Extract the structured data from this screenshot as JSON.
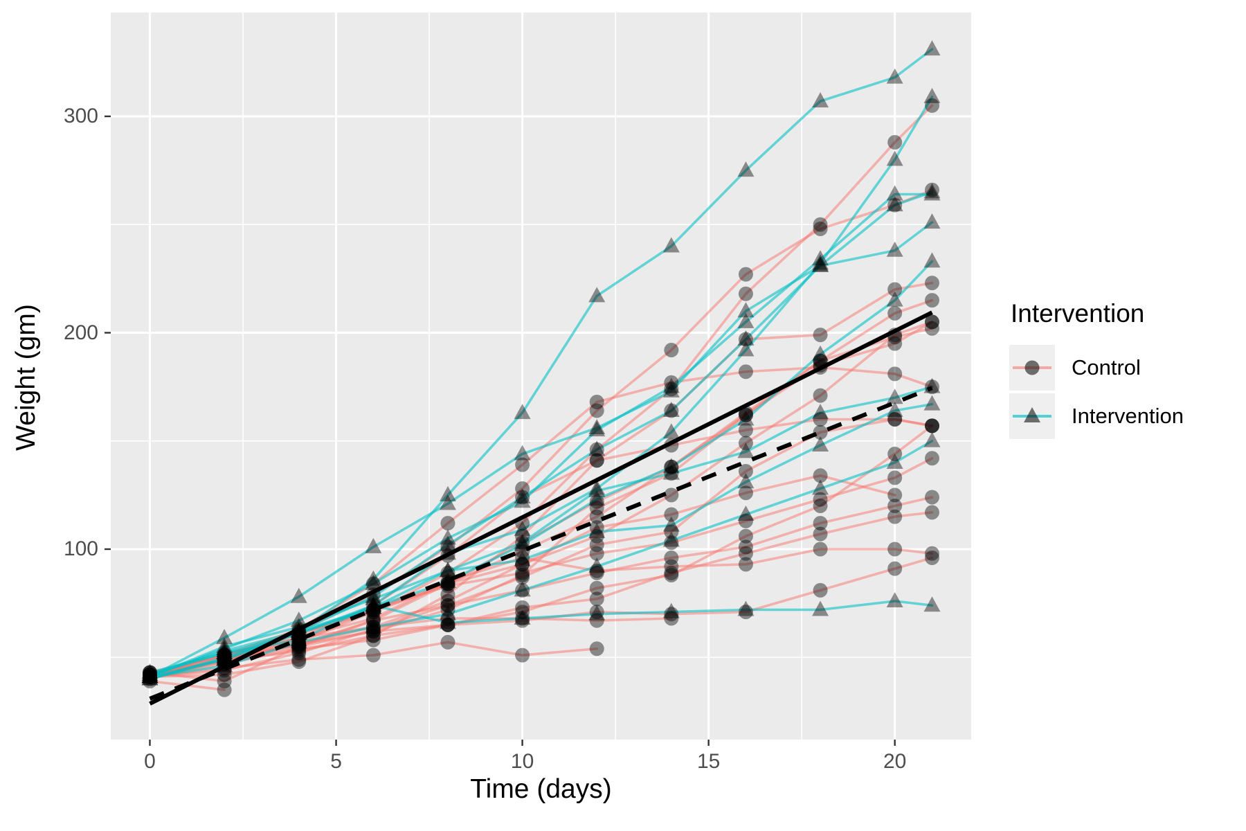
{
  "chart_data": {
    "type": "line",
    "title": "",
    "xlabel": "Time (days)",
    "ylabel": "Weight (gm)",
    "x_ticks": [
      0,
      5,
      10,
      15,
      20
    ],
    "x_minor_gridlines": [
      2.5,
      7.5,
      12.5,
      17.5
    ],
    "y_ticks": [
      100,
      200,
      300
    ],
    "y_minor_gridlines": [
      50,
      150,
      250
    ],
    "xlim": [
      -1.05,
      22.05
    ],
    "ylim": [
      12,
      348
    ],
    "grid": "white major and minor gridlines on grey panel",
    "legend_position": "right",
    "times": [
      0,
      2,
      4,
      6,
      8,
      10,
      12,
      14,
      16,
      18,
      20,
      21
    ],
    "groups": [
      {
        "name": "Control",
        "color": "#F8766D",
        "marker": "circle",
        "line_alpha": 0.5
      },
      {
        "name": "Intervention",
        "color": "#00BFC4",
        "marker": "triangle",
        "line_alpha": 0.58
      }
    ],
    "series": [
      {
        "id": "C01",
        "group": "Control",
        "values": [
          42,
          51,
          59,
          64,
          76,
          93,
          106,
          125,
          149,
          171,
          199,
          205
        ]
      },
      {
        "id": "C02",
        "group": "Control",
        "values": [
          40,
          49,
          58,
          72,
          84,
          103,
          122,
          138,
          162,
          187,
          209,
          215
        ]
      },
      {
        "id": "C03",
        "group": "Control",
        "values": [
          43,
          39,
          55,
          67,
          84,
          99,
          115,
          138,
          163,
          187,
          198,
          202
        ]
      },
      {
        "id": "C04",
        "group": "Control",
        "values": [
          42,
          49,
          56,
          67,
          74,
          87,
          102,
          108,
          136,
          154,
          160,
          157
        ]
      },
      {
        "id": "C05",
        "group": "Control",
        "values": [
          41,
          42,
          48,
          60,
          79,
          106,
          141,
          164,
          197,
          199,
          220,
          223
        ]
      },
      {
        "id": "C06",
        "group": "Control",
        "values": [
          41,
          49,
          59,
          74,
          97,
          124,
          141,
          148,
          155,
          160,
          160,
          157
        ]
      },
      {
        "id": "C07",
        "group": "Control",
        "values": [
          41,
          49,
          57,
          71,
          89,
          112,
          146,
          174,
          218,
          250,
          288,
          305
        ]
      },
      {
        "id": "C08",
        "group": "Control",
        "values": [
          42,
          50,
          61,
          71,
          84,
          93,
          110,
          116,
          126,
          134,
          125
        ]
      },
      {
        "id": "C09",
        "group": "Control",
        "values": [
          42,
          51,
          59,
          68,
          85,
          96,
          90,
          92,
          93,
          100,
          100,
          98
        ]
      },
      {
        "id": "C10",
        "group": "Control",
        "values": [
          41,
          44,
          52,
          63,
          74,
          81,
          89,
          96,
          101,
          112,
          120,
          124
        ]
      },
      {
        "id": "C11",
        "group": "Control",
        "values": [
          43,
          51,
          63,
          84,
          112,
          139,
          168,
          177,
          182,
          184,
          181,
          175
        ]
      },
      {
        "id": "C12",
        "group": "Control",
        "values": [
          41,
          49,
          56,
          62,
          72,
          88,
          119,
          135,
          162,
          185,
          195,
          205
        ]
      },
      {
        "id": "C13",
        "group": "Control",
        "values": [
          41,
          48,
          53,
          60,
          65,
          67,
          71,
          70,
          71,
          81,
          91,
          96
        ]
      },
      {
        "id": "C14",
        "group": "Control",
        "values": [
          41,
          49,
          62,
          79,
          101,
          128,
          164,
          192,
          227,
          248,
          259,
          266
        ]
      },
      {
        "id": "C15",
        "group": "Control",
        "values": [
          41,
          49,
          56,
          64,
          68,
          68,
          67,
          68
        ]
      },
      {
        "id": "C16",
        "group": "Control",
        "values": [
          41,
          45,
          49,
          51,
          57,
          51,
          54
        ]
      },
      {
        "id": "C17",
        "group": "Control",
        "values": [
          42,
          51,
          61,
          72,
          83,
          89,
          98,
          103,
          113,
          123,
          133,
          142
        ]
      },
      {
        "id": "C18",
        "group": "Control",
        "values": [
          39,
          35
        ]
      },
      {
        "id": "C19",
        "group": "Control",
        "values": [
          43,
          48,
          55,
          62,
          65,
          71,
          82,
          88,
          106,
          120,
          144,
          157
        ]
      },
      {
        "id": "C20",
        "group": "Control",
        "values": [
          41,
          47,
          54,
          58,
          65,
          73,
          77,
          89,
          98,
          107,
          115,
          117
        ]
      },
      {
        "id": "I21",
        "group": "Intervention",
        "values": [
          40,
          50,
          62,
          86,
          125,
          163,
          217,
          240,
          275,
          307,
          318,
          331
        ]
      },
      {
        "id": "I22",
        "group": "Intervention",
        "values": [
          41,
          55,
          64,
          77,
          90,
          95,
          108,
          111,
          131,
          148,
          164,
          167
        ]
      },
      {
        "id": "I23",
        "group": "Intervention",
        "values": [
          43,
          52,
          61,
          73,
          90,
          103,
          127,
          135,
          145,
          163,
          170,
          175
        ]
      },
      {
        "id": "I24",
        "group": "Intervention",
        "values": [
          42,
          52,
          58,
          74,
          66,
          68,
          70,
          71,
          72,
          72,
          76,
          74
        ]
      },
      {
        "id": "I25",
        "group": "Intervention",
        "values": [
          40,
          49,
          62,
          78,
          102,
          124,
          146,
          164,
          197,
          231,
          259,
          265
        ]
      },
      {
        "id": "I26",
        "group": "Intervention",
        "values": [
          41,
          59,
          78,
          101,
          121,
          144,
          156,
          173,
          210,
          231,
          238,
          251
        ]
      },
      {
        "id": "I27",
        "group": "Intervention",
        "values": [
          41,
          54,
          67,
          84,
          105,
          122,
          155,
          175,
          205,
          234,
          264,
          264
        ]
      },
      {
        "id": "I28",
        "group": "Intervention",
        "values": [
          41,
          49,
          61,
          74,
          98,
          109,
          128,
          154,
          192,
          232,
          280,
          309
        ]
      },
      {
        "id": "I29",
        "group": "Intervention",
        "values": [
          42,
          53,
          62,
          73,
          85,
          102,
          123,
          138,
          160,
          190,
          215,
          233
        ]
      },
      {
        "id": "I30",
        "group": "Intervention",
        "values": [
          41,
          46,
          57,
          64,
          70,
          81,
          92,
          104,
          116,
          128,
          140,
          150
        ]
      }
    ],
    "trend_lines": [
      {
        "group": "Intervention",
        "style": "solid",
        "color": "#000000",
        "x": [
          0,
          21
        ],
        "y": [
          28.6,
          209.4
        ]
      },
      {
        "group": "Control",
        "style": "dashed",
        "color": "#000000",
        "x": [
          0,
          21
        ],
        "y": [
          30.9,
          174.5
        ]
      }
    ]
  },
  "legend": {
    "title": "Intervention",
    "items": [
      {
        "label": "Control"
      },
      {
        "label": "Intervention"
      }
    ]
  },
  "style": {
    "panel_bg": "#EBEBEB",
    "grid_color": "#FFFFFF",
    "tick_color": "#333333",
    "tick_label_color": "#4D4D4D",
    "axis_title_color": "#000000",
    "point_fill": "rgba(0,0,0,0.42)",
    "legend_key_bg": "#EFEFEF"
  }
}
